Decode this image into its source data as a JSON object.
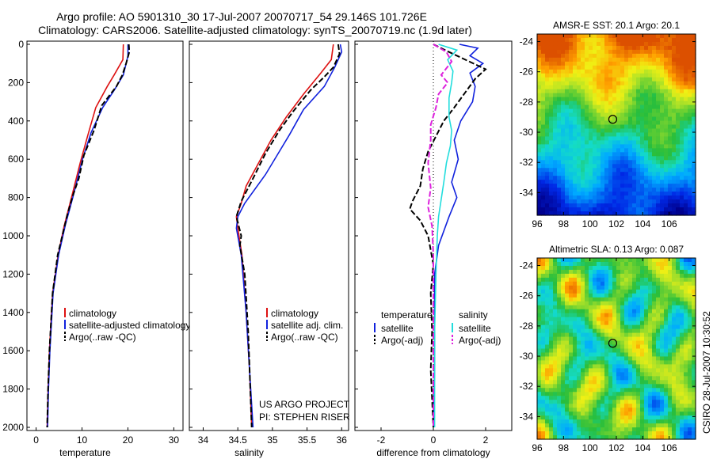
{
  "figure": {
    "title_line1": "Argo profile: AO 5901310_30 17-Jul-2007 20070717_54 29.146S 101.726E",
    "title_line2": "Climatology: CARS2006. Satellite-adjusted climatology: synTS_20070719.nc (1.9d later)",
    "credit": "CSIRO 28-Jul-2007 10:30:52",
    "note_line1": "US ARGO PROJECT",
    "note_line2": "PI: STEPHEN RISER"
  },
  "colors": {
    "climatology": "#dd1111",
    "satellite": "#1122dd",
    "argo": "#000000",
    "salinity_satellite": "#22dddd",
    "salinity_argo": "#dd22dd"
  },
  "chart_data": [
    {
      "type": "line",
      "xlabel": "temperature",
      "xlim": [
        -2,
        32
      ],
      "ylim": [
        2000,
        0
      ],
      "y_reversed": true,
      "xticks": [
        "0",
        "10",
        "20",
        "30"
      ],
      "yticks": [
        "0",
        "200",
        "400",
        "600",
        "800",
        "1000",
        "1200",
        "1400",
        "1600",
        "1800",
        "2000"
      ],
      "legend_location": "lower-right",
      "series": [
        {
          "name": "climatology",
          "style": "solid",
          "points": [
            [
              19.0,
              0
            ],
            [
              18.9,
              80
            ],
            [
              17,
              160
            ],
            [
              15.5,
              220
            ],
            [
              13,
              330
            ],
            [
              11.2,
              480
            ],
            [
              9.6,
              620
            ],
            [
              7.5,
              820
            ],
            [
              6.1,
              950
            ],
            [
              4.8,
              1100
            ],
            [
              3.6,
              1300
            ],
            [
              2.9,
              1600
            ],
            [
              2.6,
              1800
            ],
            [
              2.4,
              2000
            ]
          ]
        },
        {
          "name": "satellite-adjusted climatology",
          "style": "solid",
          "points": [
            [
              20.0,
              0
            ],
            [
              20.0,
              60
            ],
            [
              19,
              160
            ],
            [
              17,
              240
            ],
            [
              14.5,
              330
            ],
            [
              12,
              460
            ],
            [
              10.1,
              600
            ],
            [
              8,
              800
            ],
            [
              6.4,
              940
            ],
            [
              4.9,
              1100
            ],
            [
              3.7,
              1300
            ],
            [
              3,
              1600
            ],
            [
              2.7,
              1800
            ],
            [
              2.5,
              2000
            ]
          ]
        },
        {
          "name": "Argo(..raw -QC)",
          "style": "dashed",
          "points": [
            [
              20.2,
              0
            ],
            [
              20.3,
              40
            ],
            [
              19.6,
              100
            ],
            [
              18.8,
              160
            ],
            [
              17.5,
              220
            ],
            [
              14.3,
              320
            ],
            [
              12.6,
              450
            ],
            [
              10.4,
              580
            ],
            [
              9.3,
              700
            ],
            [
              8,
              790
            ],
            [
              6.8,
              890
            ],
            [
              6.2,
              950
            ],
            [
              5.2,
              1050
            ],
            [
              4.7,
              1100
            ],
            [
              3.6,
              1300
            ],
            [
              2.9,
              1600
            ],
            [
              2.6,
              1800
            ],
            [
              2.4,
              2000
            ]
          ]
        }
      ]
    },
    {
      "type": "line",
      "xlabel": "salinity",
      "xlim": [
        33.8,
        36.1
      ],
      "ylim": [
        2000,
        0
      ],
      "y_reversed": true,
      "xticks": [
        "34",
        "34.5",
        "35",
        "35.5",
        "36"
      ],
      "legend_location": "lower-right",
      "series": [
        {
          "name": "climatology",
          "style": "solid",
          "points": [
            [
              35.88,
              0
            ],
            [
              35.85,
              80
            ],
            [
              35.7,
              150
            ],
            [
              35.45,
              260
            ],
            [
              35.2,
              380
            ],
            [
              34.98,
              500
            ],
            [
              34.8,
              620
            ],
            [
              34.62,
              740
            ],
            [
              34.55,
              830
            ],
            [
              34.48,
              900
            ],
            [
              34.5,
              960
            ],
            [
              34.56,
              1100
            ],
            [
              34.62,
              1400
            ],
            [
              34.67,
              1700
            ],
            [
              34.7,
              2000
            ]
          ]
        },
        {
          "name": "satellite adj. clim.",
          "style": "solid",
          "points": [
            [
              35.98,
              0
            ],
            [
              36.0,
              40
            ],
            [
              35.9,
              120
            ],
            [
              35.75,
              220
            ],
            [
              35.45,
              340
            ],
            [
              35.25,
              470
            ],
            [
              35.1,
              560
            ],
            [
              34.9,
              680
            ],
            [
              34.6,
              830
            ],
            [
              34.5,
              900
            ],
            [
              34.48,
              960
            ],
            [
              34.55,
              1100
            ],
            [
              34.62,
              1400
            ],
            [
              34.67,
              1700
            ],
            [
              34.72,
              2000
            ]
          ]
        },
        {
          "name": "Argo(..raw -QC)",
          "style": "dashed",
          "points": [
            [
              35.95,
              0
            ],
            [
              35.97,
              50
            ],
            [
              35.88,
              120
            ],
            [
              35.75,
              170
            ],
            [
              35.55,
              240
            ],
            [
              35.3,
              350
            ],
            [
              35.1,
              450
            ],
            [
              34.9,
              570
            ],
            [
              34.72,
              700
            ],
            [
              34.55,
              820
            ],
            [
              34.48,
              900
            ],
            [
              34.55,
              1000
            ],
            [
              34.53,
              1050
            ],
            [
              34.6,
              1200
            ],
            [
              34.65,
              1500
            ],
            [
              34.7,
              2000
            ]
          ]
        }
      ]
    },
    {
      "type": "line",
      "xlabel": "difference from climatology",
      "xlim": [
        -3,
        3
      ],
      "ylim": [
        2000,
        0
      ],
      "y_reversed": true,
      "xticks": [
        "-2",
        "0",
        "2"
      ],
      "reference_line_x": 0,
      "legend_columns": [
        {
          "header": "temperature",
          "entries": [
            "satellite",
            "Argo(-adj)"
          ]
        },
        {
          "header": "salinity",
          "entries": [
            "satellite",
            "Argo(-adj)"
          ]
        }
      ],
      "series": [
        {
          "name": "satellite",
          "group": "temperature",
          "style": "solid",
          "points": [
            [
              1,
              0
            ],
            [
              1.7,
              20
            ],
            [
              1.4,
              60
            ],
            [
              1.9,
              100
            ],
            [
              1.4,
              150
            ],
            [
              1.6,
              220
            ],
            [
              1.5,
              300
            ],
            [
              1.05,
              400
            ],
            [
              0.8,
              500
            ],
            [
              0.95,
              600
            ],
            [
              0.7,
              720
            ],
            [
              0.9,
              800
            ],
            [
              0.6,
              900
            ],
            [
              0.2,
              1050
            ],
            [
              0.05,
              1200
            ],
            [
              0.05,
              1400
            ],
            [
              0.05,
              1700
            ],
            [
              0.0,
              2000
            ]
          ]
        },
        {
          "name": "Argo(-adj)",
          "group": "temperature",
          "style": "dashed",
          "points": [
            [
              0,
              0
            ],
            [
              0.6,
              40
            ],
            [
              2.0,
              130
            ],
            [
              1.6,
              180
            ],
            [
              0.8,
              330
            ],
            [
              0.4,
              400
            ],
            [
              0.1,
              480
            ],
            [
              -0.2,
              560
            ],
            [
              -0.4,
              650
            ],
            [
              -0.5,
              740
            ],
            [
              -0.8,
              820
            ],
            [
              -0.9,
              860
            ],
            [
              -0.5,
              920
            ],
            [
              -0.2,
              1000
            ],
            [
              0.0,
              1150
            ],
            [
              -0.1,
              1300
            ],
            [
              -0.05,
              1500
            ],
            [
              -0.1,
              1700
            ],
            [
              -0.05,
              1850
            ],
            [
              0.0,
              2000
            ]
          ]
        },
        {
          "name": "satellite",
          "group": "salinity",
          "style": "solid",
          "points": [
            [
              0.2,
              0
            ],
            [
              0.9,
              30
            ],
            [
              0.55,
              80
            ],
            [
              0.75,
              140
            ],
            [
              0.7,
              200
            ],
            [
              0.6,
              280
            ],
            [
              0.6,
              380
            ],
            [
              0.7,
              450
            ],
            [
              0.65,
              530
            ],
            [
              0.5,
              620
            ],
            [
              0.4,
              720
            ],
            [
              0.2,
              900
            ],
            [
              0.15,
              1000
            ],
            [
              0.1,
              1200
            ],
            [
              0.05,
              1500
            ],
            [
              0.05,
              2000
            ]
          ]
        },
        {
          "name": "Argo(-adj)",
          "group": "salinity",
          "style": "dashed",
          "points": [
            [
              0.0,
              0
            ],
            [
              0.5,
              40
            ],
            [
              0.7,
              90
            ],
            [
              0.3,
              160
            ],
            [
              0.55,
              200
            ],
            [
              0.2,
              260
            ],
            [
              0.1,
              330
            ],
            [
              -0.1,
              420
            ],
            [
              -0.1,
              500
            ],
            [
              -0.2,
              620
            ],
            [
              -0.1,
              750
            ],
            [
              -0.2,
              850
            ],
            [
              -0.05,
              950
            ],
            [
              0.0,
              1100
            ],
            [
              0.0,
              2000
            ]
          ]
        }
      ]
    },
    {
      "type": "heatmap",
      "title": "AMSR-E SST: 20.1  Argo: 20.1",
      "xlim": [
        96,
        108
      ],
      "ylim": [
        -35.5,
        -23.5
      ],
      "xticks": [
        "96",
        "98",
        "100",
        "102",
        "104",
        "106"
      ],
      "yticks": [
        "-24",
        "-26",
        "-28",
        "-30",
        "-32",
        "-34"
      ],
      "marker": {
        "lon": 101.726,
        "lat": -29.146
      }
    },
    {
      "type": "heatmap",
      "title": "Altimetric SLA: 0.13  Argo: 0.087",
      "xlim": [
        96,
        108
      ],
      "ylim": [
        -35.5,
        -23.5
      ],
      "xticks": [
        "96",
        "98",
        "100",
        "102",
        "104",
        "106"
      ],
      "yticks": [
        "-24",
        "-26",
        "-28",
        "-30",
        "-32",
        "-34"
      ],
      "marker": {
        "lon": 101.726,
        "lat": -29.146
      }
    }
  ]
}
